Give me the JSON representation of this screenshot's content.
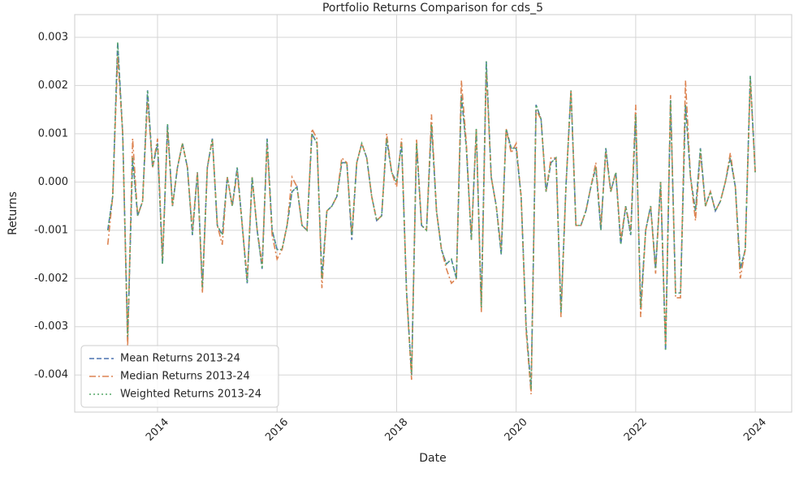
{
  "chart_data": {
    "type": "line",
    "title": "Portfolio Returns Comparison for cds_5",
    "x_label": "Date",
    "y_label": "Returns",
    "x": [
      2013.167,
      2013.25,
      2013.333,
      2013.417,
      2013.5,
      2013.583,
      2013.667,
      2013.75,
      2013.833,
      2013.917,
      2014,
      2014.083,
      2014.167,
      2014.25,
      2014.333,
      2014.417,
      2014.5,
      2014.583,
      2014.667,
      2014.75,
      2014.833,
      2014.917,
      2015,
      2015.083,
      2015.167,
      2015.25,
      2015.333,
      2015.417,
      2015.5,
      2015.583,
      2015.667,
      2015.75,
      2015.833,
      2015.917,
      2016,
      2016.083,
      2016.167,
      2016.25,
      2016.333,
      2016.417,
      2016.5,
      2016.583,
      2016.667,
      2016.75,
      2016.833,
      2016.917,
      2017,
      2017.083,
      2017.167,
      2017.25,
      2017.333,
      2017.417,
      2017.5,
      2017.583,
      2017.667,
      2017.75,
      2017.833,
      2017.917,
      2018,
      2018.083,
      2018.167,
      2018.25,
      2018.333,
      2018.417,
      2018.5,
      2018.583,
      2018.667,
      2018.75,
      2018.833,
      2018.917,
      2019,
      2019.083,
      2019.167,
      2019.25,
      2019.333,
      2019.417,
      2019.5,
      2019.583,
      2019.667,
      2019.75,
      2019.833,
      2019.917,
      2020,
      2020.083,
      2020.167,
      2020.25,
      2020.333,
      2020.417,
      2020.5,
      2020.583,
      2020.667,
      2020.75,
      2020.833,
      2020.917,
      2021,
      2021.083,
      2021.167,
      2021.25,
      2021.333,
      2021.417,
      2021.5,
      2021.583,
      2021.667,
      2021.75,
      2021.833,
      2021.917,
      2022,
      2022.083,
      2022.167,
      2022.25,
      2022.333,
      2022.417,
      2022.5,
      2022.583,
      2022.667,
      2022.75,
      2022.833,
      2022.917,
      2023,
      2023.083,
      2023.167,
      2023.25,
      2023.333,
      2023.417,
      2023.5,
      2023.583,
      2023.667,
      2023.75,
      2023.833,
      2023.917,
      2024
    ],
    "series": [
      {
        "name": "Mean Returns 2013-24",
        "color": "#4c72b0",
        "dash": "6,3",
        "values": [
          -0.001,
          -0.0003,
          0.0029,
          0.001,
          -0.0033,
          0.0005,
          -0.0007,
          -0.0004,
          0.0019,
          0.0003,
          0.0008,
          -0.0017,
          0.0012,
          -0.0005,
          0.0003,
          0.0008,
          0.0003,
          -0.0011,
          0.0002,
          -0.0022,
          0.0003,
          0.0009,
          -0.0009,
          -0.0011,
          0.0001,
          -0.0005,
          0.0003,
          -0.0009,
          -0.0021,
          0.0001,
          -0.001,
          -0.0018,
          0.0009,
          -0.001,
          -0.0014,
          -0.0014,
          -0.0009,
          -0.0002,
          -0.0001,
          -0.0009,
          -0.001,
          0.001,
          0.0008,
          -0.002,
          -0.0006,
          -0.0005,
          -0.0003,
          0.0004,
          0.0004,
          -0.0012,
          0.0004,
          0.0008,
          0.0005,
          -0.0003,
          -0.0008,
          -0.0007,
          0.0009,
          0.0002,
          0,
          0.0008,
          -0.0023,
          -0.004,
          0.0008,
          -0.0009,
          -0.001,
          0.0012,
          -0.0006,
          -0.0014,
          -0.0017,
          -0.0016,
          -0.002,
          0.0018,
          0.0007,
          -0.0012,
          0.0011,
          -0.0026,
          0.0025,
          0.0001,
          -0.0005,
          -0.0015,
          0.0011,
          0.0007,
          0.0007,
          -0.0003,
          -0.003,
          -0.0043,
          0.0016,
          0.0013,
          -0.0002,
          0.0004,
          0.0005,
          -0.0027,
          -0.0001,
          0.0019,
          -0.0009,
          -0.0009,
          -0.0006,
          -0.0001,
          0.0003,
          -0.001,
          0.0007,
          -0.0002,
          0.0002,
          -0.0013,
          -0.0005,
          -0.0011,
          0.0014,
          -0.0026,
          -0.001,
          -0.0005,
          -0.0018,
          0,
          -0.0035,
          0.0017,
          -0.0023,
          -0.0023,
          0.0016,
          0.0001,
          -0.0006,
          0.0007,
          -0.0005,
          -0.0002,
          -0.0006,
          -0.0004,
          0,
          0.0005,
          -0.0001,
          -0.0018,
          -0.0014,
          0.0022,
          0.0002
        ]
      },
      {
        "name": "Median Returns 2013-24",
        "color": "#dd8452",
        "dash": "8,3,2,3",
        "values": [
          -0.0013,
          -0.0003,
          0.0026,
          0.001,
          -0.0034,
          0.0009,
          -0.0007,
          -0.0004,
          0.0017,
          0.0003,
          0.0009,
          -0.0016,
          0.0011,
          -0.0005,
          0.0003,
          0.0008,
          0.0003,
          -0.001,
          0.0002,
          -0.0023,
          0.0003,
          0.0009,
          -0.0009,
          -0.0013,
          0.0001,
          -0.0005,
          0.0002,
          -0.0009,
          -0.002,
          0.0001,
          -0.001,
          -0.0017,
          0.0008,
          -0.0011,
          -0.0016,
          -0.0014,
          -0.0009,
          0.0001,
          -0.0001,
          -0.0009,
          -0.001,
          0.0011,
          0.0009,
          -0.0022,
          -0.0006,
          -0.0005,
          -0.0003,
          0.0005,
          0.0004,
          -0.0011,
          0.0004,
          0.0008,
          0.0005,
          -0.0003,
          -0.0008,
          -0.0007,
          0.001,
          0.0002,
          -0.0001,
          0.0009,
          -0.0023,
          -0.0041,
          0.0009,
          -0.0009,
          -0.001,
          0.0014,
          -0.0006,
          -0.0014,
          -0.0018,
          -0.0021,
          -0.002,
          0.0021,
          0.0008,
          -0.0012,
          0.0011,
          -0.0027,
          0.0023,
          0.0001,
          -0.0005,
          -0.0014,
          0.0011,
          0.0006,
          0.0008,
          -0.0003,
          -0.0031,
          -0.0044,
          0.0015,
          0.0013,
          -0.0002,
          0.0005,
          0.0005,
          -0.0028,
          -0.0001,
          0.0019,
          -0.0009,
          -0.0009,
          -0.0006,
          -0.0001,
          0.0004,
          -0.0009,
          0.0006,
          -0.0002,
          0.0002,
          -0.0012,
          -0.0005,
          -0.001,
          0.0016,
          -0.0028,
          -0.001,
          -0.0005,
          -0.0019,
          0,
          -0.0034,
          0.0018,
          -0.0024,
          -0.0024,
          0.0021,
          0.0001,
          -0.0008,
          0.0006,
          -0.0005,
          -0.0002,
          -0.0006,
          -0.0004,
          0,
          0.0006,
          -0.0001,
          -0.002,
          -0.0014,
          0.0021,
          0.0002
        ]
      },
      {
        "name": "Weighted Returns 2013-24",
        "color": "#55a868",
        "dash": "2,3",
        "values": [
          -0.001,
          -0.0003,
          0.0029,
          0.001,
          -0.0032,
          0.0005,
          -0.0007,
          -0.0004,
          0.0019,
          0.0003,
          0.0008,
          -0.0017,
          0.0012,
          -0.0005,
          0.0003,
          0.0008,
          0.0003,
          -0.0011,
          0.0002,
          -0.0022,
          0.0003,
          0.0009,
          -0.0009,
          -0.0011,
          0.0001,
          -0.0005,
          0.0003,
          -0.0009,
          -0.0021,
          0.0001,
          -0.001,
          -0.0018,
          0.0009,
          -0.001,
          -0.0014,
          -0.0014,
          -0.0009,
          -0.0002,
          -0.0001,
          -0.0009,
          -0.001,
          0.001,
          0.0008,
          -0.002,
          -0.0006,
          -0.0005,
          -0.0003,
          0.0004,
          0.0004,
          -0.0011,
          0.0004,
          0.0008,
          0.0005,
          -0.0003,
          -0.0008,
          -0.0007,
          0.0009,
          0.0002,
          0,
          0.0008,
          -0.0023,
          -0.004,
          0.0008,
          -0.0009,
          -0.001,
          0.0012,
          -0.0006,
          -0.0014,
          -0.0017,
          -0.0016,
          -0.002,
          0.0018,
          0.0007,
          -0.0012,
          0.0011,
          -0.0026,
          0.0025,
          0.0001,
          -0.0005,
          -0.0015,
          0.0011,
          0.0007,
          0.0007,
          -0.0003,
          -0.003,
          -0.0043,
          0.0016,
          0.0013,
          -0.0002,
          0.0004,
          0.0005,
          -0.0027,
          -0.0001,
          0.0019,
          -0.0009,
          -0.0009,
          -0.0006,
          -0.0001,
          0.0003,
          -0.001,
          0.0007,
          -0.0002,
          0.0002,
          -0.0013,
          -0.0005,
          -0.0011,
          0.0014,
          -0.0026,
          -0.001,
          -0.0005,
          -0.0018,
          0,
          -0.0035,
          0.0017,
          -0.0023,
          -0.0023,
          0.0016,
          0.0001,
          -0.0006,
          0.0007,
          -0.0005,
          -0.0002,
          -0.0006,
          -0.0004,
          0,
          0.0005,
          -0.0001,
          -0.0018,
          -0.0014,
          0.0022,
          0.0002
        ]
      }
    ],
    "xlim": [
      2012.614,
      2024.61
    ],
    "xticks": [
      2014,
      2016,
      2018,
      2020,
      2022,
      2024
    ],
    "ylim": [
      -0.00477,
      0.00347
    ],
    "yticks": [
      0.003,
      0.002,
      0.001,
      {
        "value": 0,
        "label": "0.000"
      },
      -0.001,
      -0.002,
      -0.003,
      -0.004
    ],
    "grid": true,
    "legend": "lower left"
  }
}
